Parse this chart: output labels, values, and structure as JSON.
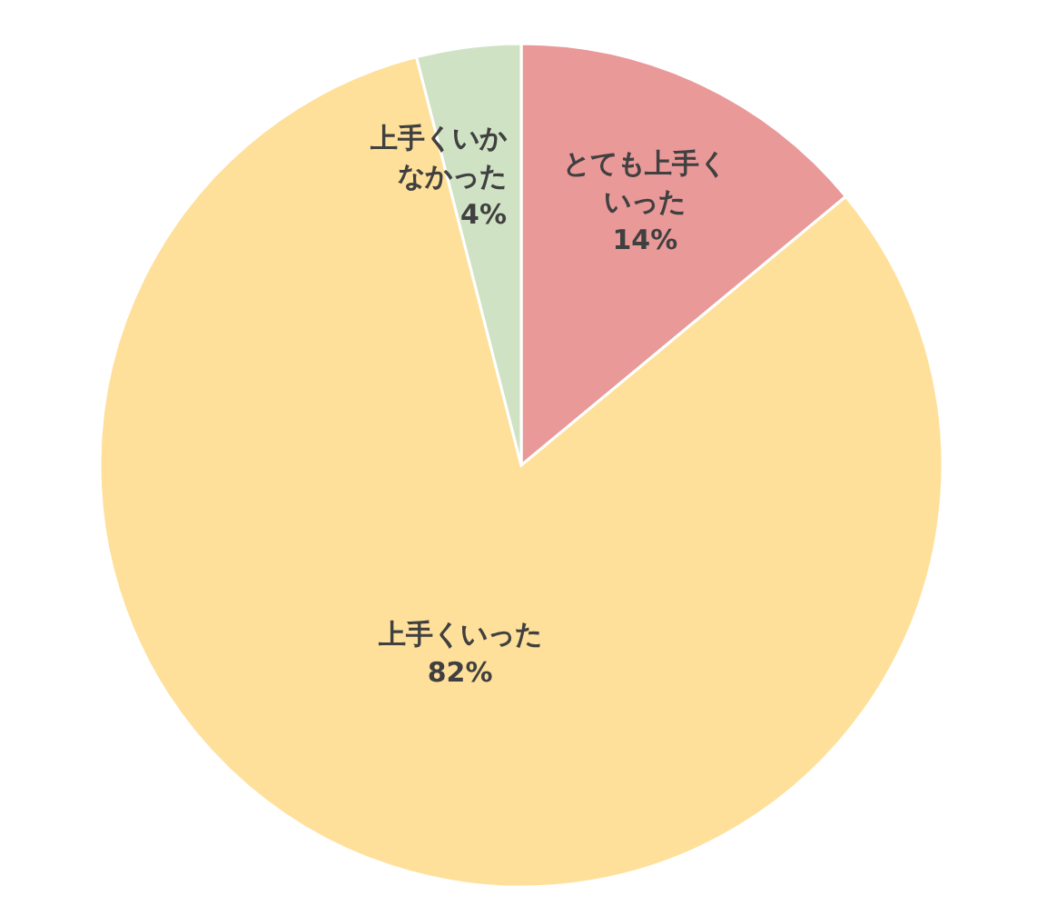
{
  "chart_data": {
    "type": "pie",
    "categories": [
      "とても上手くいった",
      "上手くいった",
      "上手くいかなかった"
    ],
    "values": [
      14,
      82,
      4
    ],
    "value_labels": [
      "14%",
      "82%",
      "4%"
    ],
    "colors": [
      "#ea9999",
      "#ffe09a",
      "#d0e2c4"
    ],
    "legend": false
  }
}
